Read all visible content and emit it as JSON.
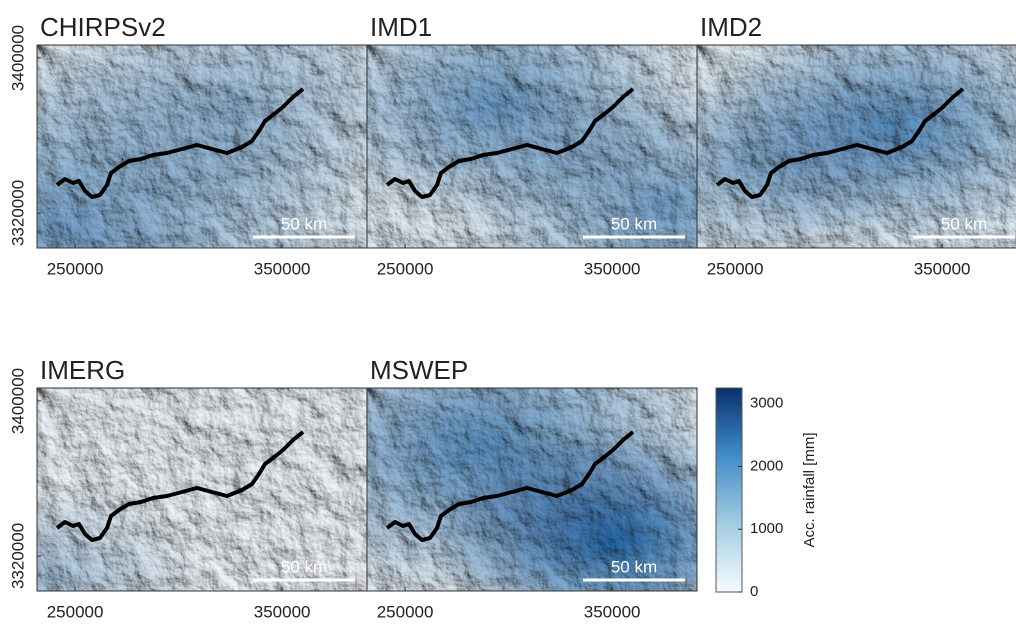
{
  "figure": {
    "xlim": [
      231600,
      391000
    ],
    "ylim": [
      3301900,
      3406700
    ],
    "xticks": [
      250000,
      350000
    ],
    "yticks": [
      3320000,
      3400000
    ],
    "scale_bar": "50 km",
    "panels": [
      {
        "title": "CHIRPSv2"
      },
      {
        "title": "IMD1"
      },
      {
        "title": "IMD2"
      },
      {
        "title": "IMERG"
      },
      {
        "title": "MSWEP"
      }
    ],
    "colorbar": {
      "label": "Acc. rainfall [mm]",
      "lim": [
        0,
        3250
      ],
      "ticks": [
        0,
        1000,
        2000,
        3000
      ]
    }
  }
}
